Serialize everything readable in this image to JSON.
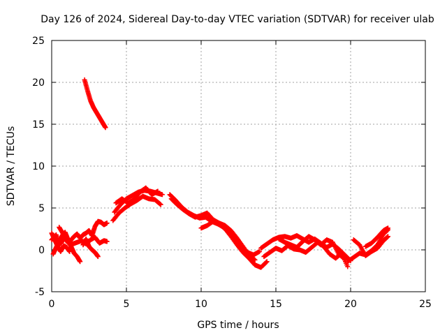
{
  "chart_data": {
    "type": "scatter",
    "title": "Day 126 of 2024, Sidereal Day-to-day VTEC variation (SDTVAR) for receiver ulab",
    "xlabel": "GPS time / hours",
    "ylabel": "SDTVAR / TECUs",
    "xlim": [
      0,
      25
    ],
    "ylim": [
      -5,
      25
    ],
    "xticks": [
      0,
      5,
      10,
      15,
      20,
      25
    ],
    "yticks": [
      -5,
      0,
      5,
      10,
      15,
      20,
      25
    ],
    "grid": true,
    "marker": "+",
    "color": "#ff0000",
    "series": [
      {
        "name": "SDTVAR",
        "segments": [
          {
            "x": [
              2.2,
              2.4,
              2.6,
              2.8,
              3.0,
              3.2,
              3.4,
              3.6
            ],
            "y": [
              20.3,
              19.0,
              17.8,
              17.0,
              16.4,
              15.8,
              15.2,
              14.6
            ]
          },
          {
            "x": [
              0.0,
              0.3,
              0.5,
              0.7,
              0.9,
              1.1,
              1.3,
              1.5,
              1.7,
              1.9,
              2.1,
              2.3,
              2.5,
              2.7,
              2.9,
              3.1,
              3.3,
              3.5,
              3.7
            ],
            "y": [
              1.2,
              1.8,
              0.6,
              1.0,
              1.5,
              0.8,
              1.2,
              1.6,
              1.9,
              1.4,
              1.8,
              2.0,
              2.3,
              1.7,
              2.8,
              3.4,
              3.3,
              3.0,
              3.2
            ]
          },
          {
            "x": [
              0.1,
              0.3,
              0.5,
              0.7,
              0.9,
              1.1,
              1.3,
              1.5,
              1.7,
              1.9
            ],
            "y": [
              -0.5,
              0.3,
              0.9,
              1.7,
              2.1,
              1.2,
              0.4,
              -0.4,
              -0.8,
              -1.4
            ]
          },
          {
            "x": [
              0.5,
              0.8,
              1.1,
              1.4,
              1.7,
              2.0,
              2.3,
              2.6,
              2.9,
              3.2,
              3.5,
              3.7
            ],
            "y": [
              2.7,
              1.8,
              1.1,
              0.7,
              0.9,
              1.1,
              0.7,
              1.2,
              1.5,
              0.8,
              1.1,
              1.0
            ]
          },
          {
            "x": [
              0.0,
              0.2,
              0.4,
              0.6,
              0.8,
              1.0,
              1.2
            ],
            "y": [
              2.0,
              1.2,
              0.4,
              -0.2,
              0.5,
              0.3,
              -0.2
            ]
          },
          {
            "x": [
              2.1,
              2.3,
              2.5,
              2.7,
              2.9,
              3.1
            ],
            "y": [
              0.6,
              1.3,
              0.4,
              0.0,
              -0.3,
              -0.8
            ]
          },
          {
            "x": [
              4.2,
              4.6,
              5.0,
              5.4,
              5.8,
              6.2,
              6.6,
              7.0,
              7.4
            ],
            "y": [
              4.5,
              5.4,
              6.1,
              6.5,
              6.9,
              7.1,
              7.0,
              6.8,
              6.6
            ]
          },
          {
            "x": [
              4.1,
              4.5,
              4.9,
              5.3,
              5.7,
              6.1,
              6.5,
              6.9,
              7.3
            ],
            "y": [
              3.5,
              4.4,
              5.0,
              5.5,
              5.9,
              6.4,
              6.1,
              6.0,
              5.4
            ]
          },
          {
            "x": [
              4.3,
              4.7,
              5.1,
              5.5,
              5.9,
              6.3,
              6.7,
              7.1
            ],
            "y": [
              5.6,
              6.1,
              5.6,
              6.0,
              6.9,
              7.4,
              6.6,
              7.0
            ]
          },
          {
            "x": [
              7.9,
              8.3,
              8.7,
              9.1,
              9.5,
              9.9,
              10.3,
              10.7,
              11.1,
              11.5,
              11.9,
              12.3,
              12.7,
              13.1,
              13.5,
              13.9
            ],
            "y": [
              6.6,
              5.9,
              5.1,
              4.5,
              4.1,
              3.8,
              3.9,
              3.4,
              3.1,
              2.7,
              2.0,
              1.2,
              0.3,
              -0.3,
              -0.6,
              -0.2
            ]
          },
          {
            "x": [
              8.0,
              8.4,
              8.8,
              9.2,
              9.6,
              10.0,
              10.4,
              10.8,
              11.2,
              11.6,
              12.0,
              12.4,
              12.8,
              13.2,
              13.6
            ],
            "y": [
              6.1,
              5.4,
              4.8,
              4.3,
              3.9,
              4.1,
              4.4,
              3.6,
              3.2,
              2.9,
              2.3,
              1.4,
              0.4,
              -0.6,
              -1.2
            ]
          },
          {
            "x": [
              10.0,
              10.4,
              10.8,
              11.2,
              11.6,
              12.0,
              12.4,
              12.8,
              13.2,
              13.6,
              14.0,
              14.4
            ],
            "y": [
              2.6,
              2.9,
              3.4,
              3.1,
              2.5,
              1.6,
              0.6,
              -0.3,
              -1.0,
              -1.8,
              -2.1,
              -1.4
            ]
          },
          {
            "x": [
              14.0,
              14.4,
              14.8,
              15.2,
              15.6,
              16.0,
              16.4,
              16.8,
              17.2,
              17.6,
              18.0,
              18.4,
              18.8,
              19.2,
              19.6,
              20.0
            ],
            "y": [
              0.2,
              0.7,
              1.2,
              1.5,
              1.6,
              1.4,
              1.7,
              1.3,
              0.9,
              1.3,
              0.8,
              0.3,
              0.7,
              0.1,
              -0.6,
              -1.3
            ]
          },
          {
            "x": [
              14.2,
              14.6,
              15.0,
              15.4,
              15.8,
              16.2,
              16.6,
              17.0,
              17.4,
              17.8,
              18.2,
              18.6,
              19.0,
              19.4,
              19.8
            ],
            "y": [
              -0.8,
              -0.3,
              0.2,
              -0.1,
              0.5,
              0.1,
              0.0,
              -0.3,
              0.3,
              0.9,
              0.4,
              -0.5,
              -1.0,
              -0.4,
              -2.0
            ]
          },
          {
            "x": [
              15.2,
              15.6,
              16.0,
              16.4,
              16.8,
              17.2,
              17.6,
              18.0,
              18.4,
              18.8,
              19.2,
              19.6
            ],
            "y": [
              1.3,
              0.9,
              0.6,
              0.3,
              1.0,
              1.6,
              1.2,
              0.6,
              1.2,
              0.9,
              -0.5,
              -1.1
            ]
          },
          {
            "x": [
              19.8,
              20.2,
              20.6,
              21.0,
              21.4,
              21.8,
              22.2,
              22.5
            ],
            "y": [
              -1.4,
              -0.9,
              -0.4,
              -0.6,
              -0.1,
              0.6,
              1.9,
              2.4
            ]
          },
          {
            "x": [
              20.2,
              20.6,
              21.0,
              21.4,
              21.8,
              22.2,
              22.5
            ],
            "y": [
              1.2,
              0.6,
              -0.7,
              -0.2,
              0.2,
              1.1,
              1.6
            ]
          },
          {
            "x": [
              21.0,
              21.4,
              21.8,
              22.2,
              22.5
            ],
            "y": [
              0.4,
              0.8,
              1.5,
              2.3,
              2.6
            ]
          }
        ]
      }
    ]
  }
}
